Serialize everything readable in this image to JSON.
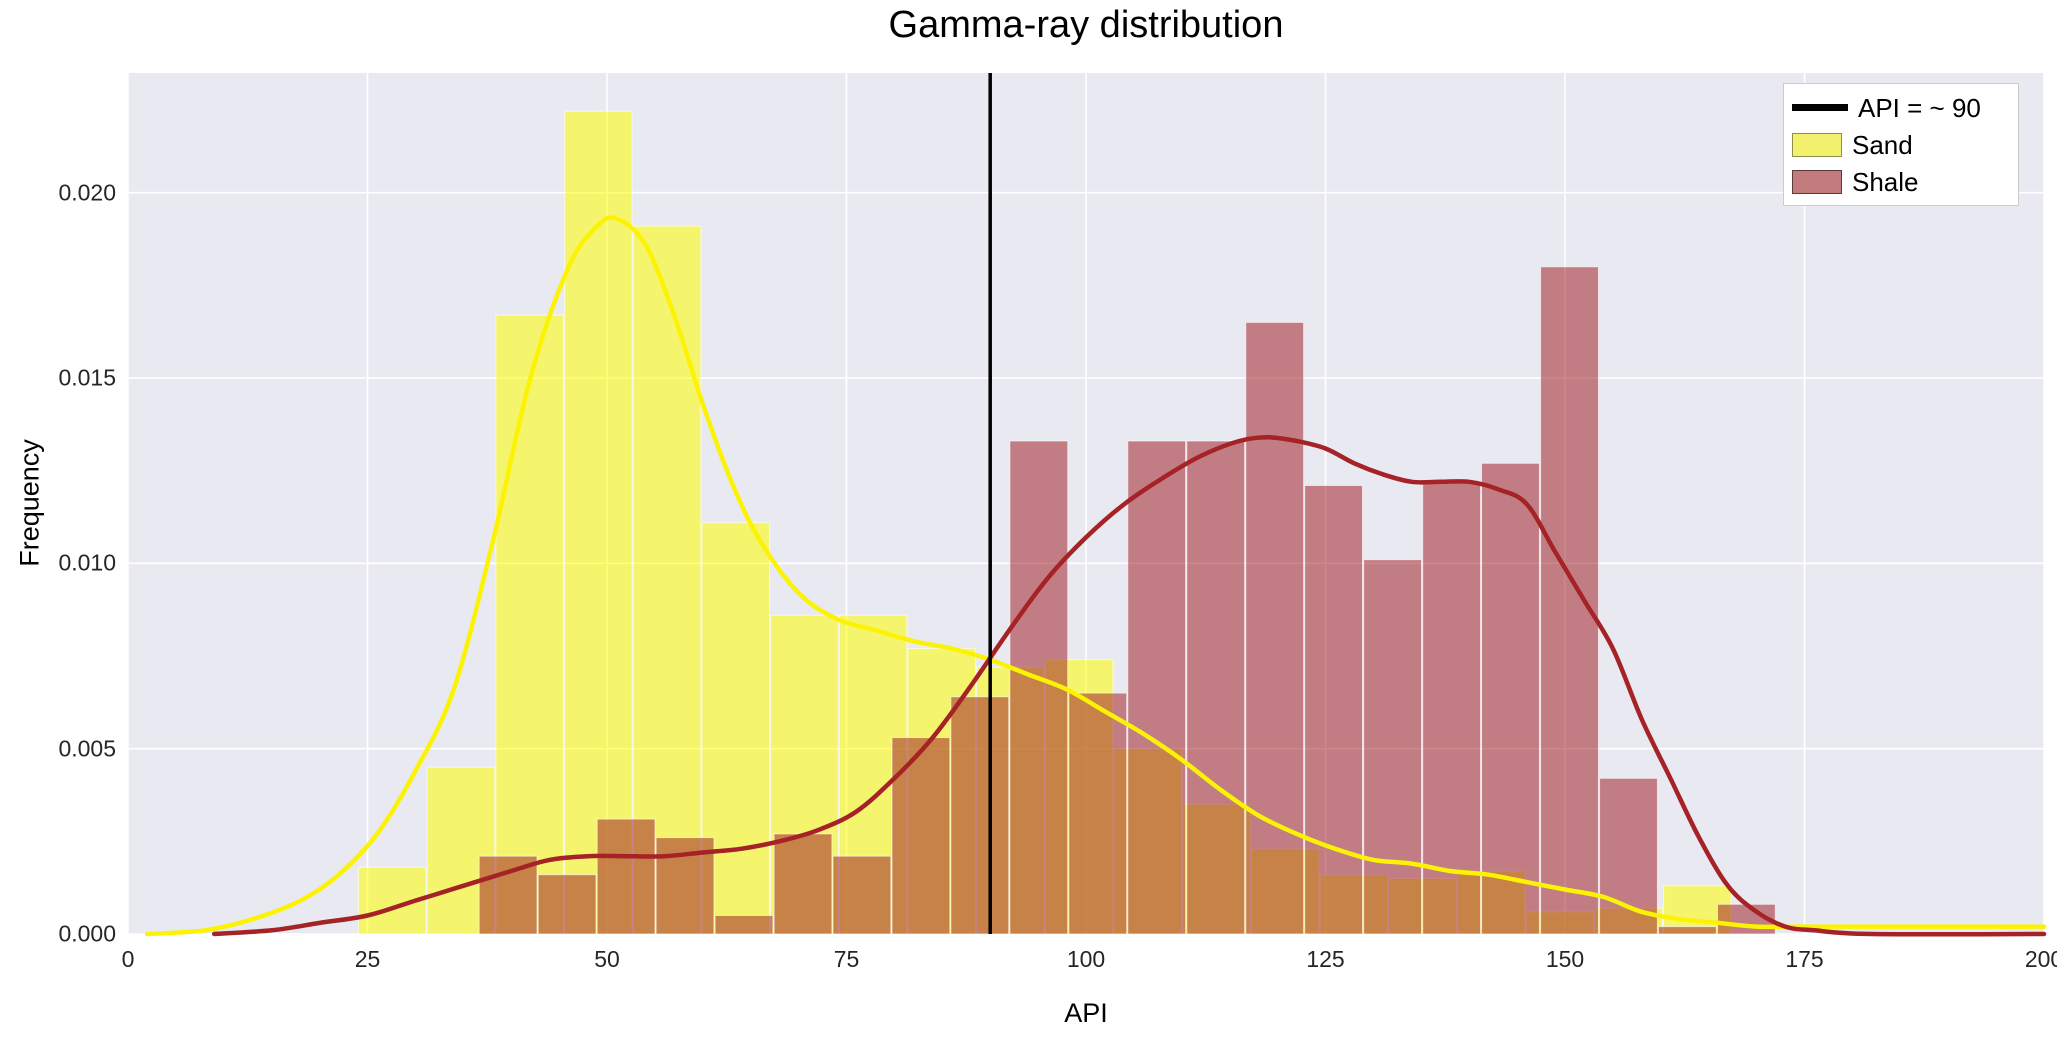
{
  "chart_data": {
    "type": "histogram",
    "title": "Gamma-ray distribution",
    "xlabel": "API",
    "ylabel": "Frequency",
    "xlim": [
      0,
      200
    ],
    "ylim": [
      0,
      0.02323
    ],
    "grid": true,
    "x_ticks": [
      {
        "value": 0,
        "label": "0"
      },
      {
        "value": 25,
        "label": "25"
      },
      {
        "value": 50,
        "label": "50"
      },
      {
        "value": 75,
        "label": "75"
      },
      {
        "value": 100,
        "label": "100"
      },
      {
        "value": 125,
        "label": "125"
      },
      {
        "value": 150,
        "label": "150"
      },
      {
        "value": 175,
        "label": "175"
      },
      {
        "value": 200,
        "label": "200"
      }
    ],
    "y_ticks": [
      {
        "value": 0.0,
        "label": "0.000"
      },
      {
        "value": 0.005,
        "label": "0.005"
      },
      {
        "value": 0.01,
        "label": "0.010"
      },
      {
        "value": 0.015,
        "label": "0.015"
      },
      {
        "value": 0.02,
        "label": "0.020"
      }
    ],
    "vline": {
      "x": 90,
      "color": "#000000"
    },
    "legend": {
      "position": "upper right",
      "items": [
        {
          "label": "API = ~ 90",
          "swatch": "line",
          "color": "#000000"
        },
        {
          "label": "Sand",
          "swatch": "patch",
          "fill": "#f3f06e",
          "border": "#8f8f4e"
        },
        {
          "label": "Shale",
          "swatch": "patch",
          "fill": "#c27a7d",
          "border": "#5c393b"
        }
      ]
    },
    "series": [
      {
        "name": "Sand histogram",
        "role": "histogram",
        "bin_start": 24.0,
        "bin_width": 7.17,
        "heights": [
          0.0018,
          0.0045,
          0.0167,
          0.0222,
          0.0191,
          0.0111,
          0.0086,
          0.0086,
          0.0077,
          0.0072,
          0.0074,
          0.005,
          0.0035,
          0.0023,
          0.0016,
          0.0015,
          0.0017,
          0.0006,
          0.0007,
          0.0013
        ]
      },
      {
        "name": "Shale histogram",
        "role": "histogram",
        "bin_start": 36.6,
        "bin_width": 6.155,
        "heights": [
          0.0021,
          0.0016,
          0.0031,
          0.0026,
          0.0005,
          0.0027,
          0.0021,
          0.0053,
          0.0064,
          0.0133,
          0.0065,
          0.0133,
          0.0133,
          0.0165,
          0.0121,
          0.0101,
          0.0122,
          0.0127,
          0.018,
          0.0042,
          0.0002,
          0.0008
        ]
      },
      {
        "name": "Sand KDE",
        "role": "kde",
        "points": [
          [
            2,
            0.0
          ],
          [
            8,
            0.0001
          ],
          [
            13,
            0.0004
          ],
          [
            18,
            0.0009
          ],
          [
            22,
            0.0016
          ],
          [
            26,
            0.0027
          ],
          [
            30,
            0.0044
          ],
          [
            34,
            0.0066
          ],
          [
            38,
            0.0105
          ],
          [
            42,
            0.015
          ],
          [
            46,
            0.018
          ],
          [
            49,
            0.0191
          ],
          [
            51,
            0.0193
          ],
          [
            54,
            0.0186
          ],
          [
            57,
            0.0167
          ],
          [
            60,
            0.0143
          ],
          [
            63,
            0.0122
          ],
          [
            66,
            0.0106
          ],
          [
            70,
            0.0092
          ],
          [
            74,
            0.0085
          ],
          [
            78,
            0.0082
          ],
          [
            82,
            0.0079
          ],
          [
            86,
            0.0077
          ],
          [
            90,
            0.0074
          ],
          [
            94,
            0.007
          ],
          [
            98,
            0.0066
          ],
          [
            102,
            0.006
          ],
          [
            106,
            0.0054
          ],
          [
            110,
            0.0047
          ],
          [
            114,
            0.0039
          ],
          [
            118,
            0.0032
          ],
          [
            122,
            0.0027
          ],
          [
            126,
            0.0023
          ],
          [
            130,
            0.002
          ],
          [
            134,
            0.0019
          ],
          [
            138,
            0.0017
          ],
          [
            142,
            0.0016
          ],
          [
            146,
            0.0014
          ],
          [
            150,
            0.0012
          ],
          [
            154,
            0.001
          ],
          [
            158,
            0.0006
          ],
          [
            162,
            0.0004
          ],
          [
            166,
            0.0003
          ],
          [
            170,
            0.0002
          ],
          [
            175,
            0.0002
          ],
          [
            185,
            0.0002
          ],
          [
            200,
            0.0002
          ]
        ]
      },
      {
        "name": "Shale KDE",
        "role": "kde",
        "points": [
          [
            9,
            0.0
          ],
          [
            15,
            0.0001
          ],
          [
            20,
            0.0003
          ],
          [
            25,
            0.0005
          ],
          [
            30,
            0.0009
          ],
          [
            35,
            0.0013
          ],
          [
            40,
            0.0017
          ],
          [
            44,
            0.002
          ],
          [
            48,
            0.0021
          ],
          [
            52,
            0.0021
          ],
          [
            56,
            0.0021
          ],
          [
            60,
            0.0022
          ],
          [
            64,
            0.0023
          ],
          [
            68,
            0.0025
          ],
          [
            72,
            0.0028
          ],
          [
            76,
            0.0033
          ],
          [
            80,
            0.0042
          ],
          [
            84,
            0.0053
          ],
          [
            88,
            0.0067
          ],
          [
            92,
            0.0082
          ],
          [
            96,
            0.0096
          ],
          [
            100,
            0.0107
          ],
          [
            104,
            0.0116
          ],
          [
            108,
            0.0123
          ],
          [
            112,
            0.0129
          ],
          [
            116,
            0.0133
          ],
          [
            119,
            0.0134
          ],
          [
            122,
            0.0133
          ],
          [
            125,
            0.0131
          ],
          [
            128,
            0.0127
          ],
          [
            131,
            0.0124
          ],
          [
            134,
            0.0122
          ],
          [
            137,
            0.0122
          ],
          [
            140,
            0.0122
          ],
          [
            143,
            0.012
          ],
          [
            146,
            0.0116
          ],
          [
            149,
            0.0103
          ],
          [
            152,
            0.009
          ],
          [
            155,
            0.0077
          ],
          [
            158,
            0.0058
          ],
          [
            161,
            0.0042
          ],
          [
            164,
            0.0026
          ],
          [
            167,
            0.0013
          ],
          [
            170,
            0.0006
          ],
          [
            173,
            0.0002
          ],
          [
            176,
            0.0001
          ],
          [
            182,
            0.0
          ],
          [
            200,
            0.0
          ]
        ]
      }
    ],
    "colors": {
      "figure_bg": "#ffffff",
      "plot_bg": "#e9e9f1",
      "grid": "#ffffff",
      "sand_fill": "rgba(255,255,0,0.55)",
      "shale_fill": "rgba(160,36,40,0.55)",
      "bar_edge": "rgba(255,255,255,0.6)",
      "sand_line": "#fbf303",
      "shale_line": "#a52226",
      "vline": "#000000",
      "tick_text": "#262626"
    }
  }
}
